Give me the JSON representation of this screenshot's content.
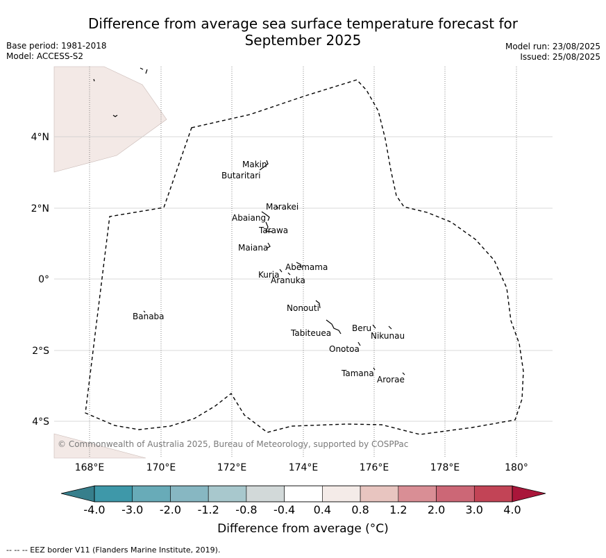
{
  "header": {
    "title_line1": "Difference from average sea surface temperature forecast for",
    "title_line2": "September 2025",
    "base_period": "Base period: 1981-2018",
    "model": "Model: ACCESS-S2",
    "model_run": "Model run: 23/08/2025",
    "issued": "Issued: 25/08/2025"
  },
  "map": {
    "lat_labels": [
      "4°N",
      "2°N",
      "0°",
      "2°S",
      "4°S"
    ],
    "lon_labels": [
      "168°E",
      "170°E",
      "172°E",
      "174°E",
      "176°E",
      "178°E",
      "180°"
    ],
    "copyright": "© Commonwealth of Australia 2025, Bureau of Meteorology, supported by COSPPac",
    "land_color": "#f3e9e6",
    "islands": [
      {
        "name": "Makin"
      },
      {
        "name": "Butaritari"
      },
      {
        "name": "Marakei"
      },
      {
        "name": "Abaiang"
      },
      {
        "name": "Tarawa"
      },
      {
        "name": "Maiana"
      },
      {
        "name": "Abemama"
      },
      {
        "name": "Kuria"
      },
      {
        "name": "Aranuka"
      },
      {
        "name": "Nonouti"
      },
      {
        "name": "Banaba"
      },
      {
        "name": "Beru"
      },
      {
        "name": "Nikunau"
      },
      {
        "name": "Tabiteuea"
      },
      {
        "name": "Onotoa"
      },
      {
        "name": "Tamana"
      },
      {
        "name": "Arorae"
      }
    ]
  },
  "colorbar": {
    "title": "Difference from average (°C)",
    "ticks": [
      "-4.0",
      "-3.0",
      "-2.0",
      "-1.2",
      "-0.8",
      "-0.4",
      "0.4",
      "0.8",
      "1.2",
      "2.0",
      "3.0",
      "4.0"
    ],
    "under_color": "#377f8c",
    "over_color": "#a9163a",
    "colors": [
      "#3e98a9",
      "#68abb8",
      "#87b7c2",
      "#a8c8cd",
      "#d2d9d9",
      "#ffffff",
      "#f4ebe8",
      "#e8c5c0",
      "#d98e95",
      "#cc6776",
      "#c24456"
    ]
  },
  "footer": "--  --  -- EEZ border V11 (Flanders Marine Institute, 2019)."
}
